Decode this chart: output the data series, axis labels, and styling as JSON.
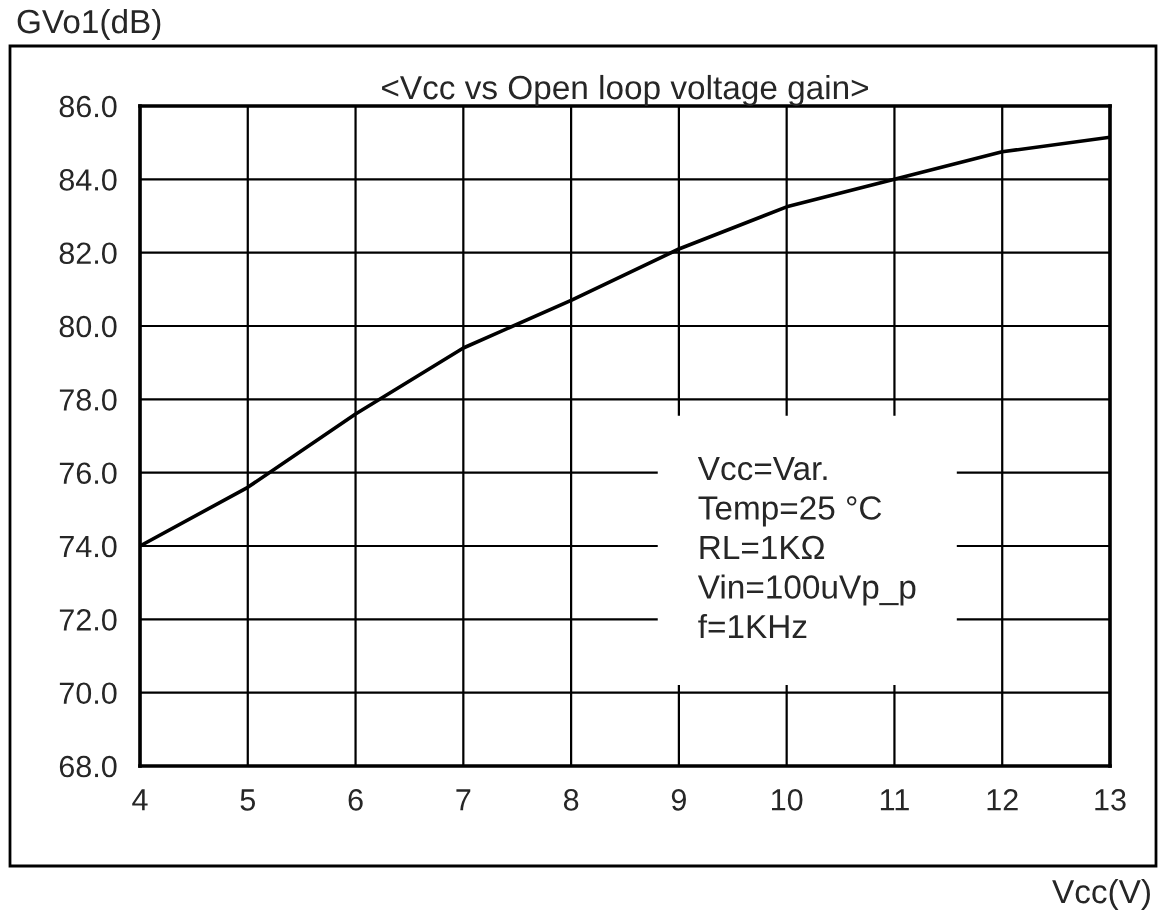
{
  "chart_data": {
    "type": "line",
    "title": "<Vcc vs Open loop voltage gain>",
    "xlabel": "Vcc(V)",
    "ylabel": "GVo1(dB)",
    "x": [
      4,
      5,
      6,
      7,
      8,
      9,
      10,
      11,
      12,
      13
    ],
    "series": [
      {
        "color": "#000000",
        "values": [
          74.0,
          75.6,
          77.6,
          79.4,
          80.7,
          82.1,
          83.25,
          84.0,
          84.75,
          85.15
        ]
      }
    ],
    "xlim": [
      4,
      13
    ],
    "xticks": [
      4,
      5,
      6,
      7,
      8,
      9,
      10,
      11,
      12,
      13
    ],
    "ylim": [
      68,
      86
    ],
    "yticks": [
      {
        "value": 68,
        "label": "68.0"
      },
      {
        "value": 70,
        "label": "70.0"
      },
      {
        "value": 72,
        "label": "72.0"
      },
      {
        "value": 74,
        "label": "74.0"
      },
      {
        "value": 76,
        "label": "76.0"
      },
      {
        "value": 78,
        "label": "78.0"
      },
      {
        "value": 80,
        "label": "80.0"
      },
      {
        "value": 82,
        "label": "82.0"
      },
      {
        "value": 84,
        "label": "84.0"
      },
      {
        "value": 86,
        "label": "86.0"
      }
    ],
    "grid": true,
    "marker": "none",
    "line_style": "solid",
    "annotations": [
      "Vcc=Var.\nTemp=25 °C\nRL=1KΩ\nVin=100uVp_p\nf=1KHz"
    ]
  }
}
